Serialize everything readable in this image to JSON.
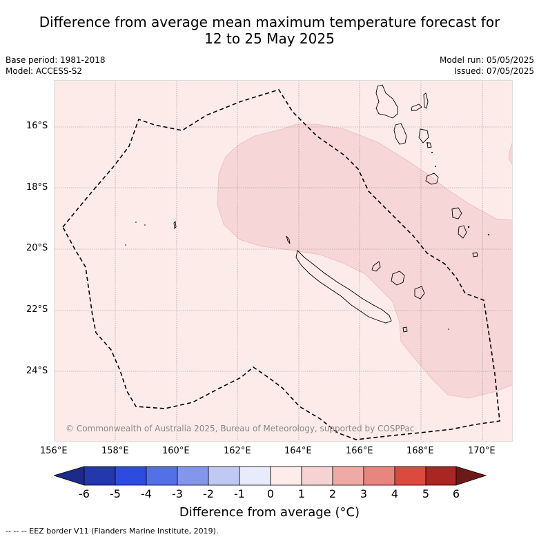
{
  "title_line1": "Difference from average mean maximum temperature forecast for",
  "title_line2": "12 to 25 May 2025",
  "meta_left": {
    "base_period": "Base period: 1981-2018",
    "model": "Model: ACCESS-S2"
  },
  "meta_right": {
    "model_run": "Model run: 05/05/2025",
    "issued": "Issued: 07/05/2025"
  },
  "lat_labels": [
    "16°S",
    "18°S",
    "20°S",
    "22°S",
    "24°S"
  ],
  "lon_labels": [
    "156°E",
    "158°E",
    "160°E",
    "162°E",
    "164°E",
    "166°E",
    "168°E",
    "170°E"
  ],
  "copyright": "© Commonwealth of Australia 2025, Bureau of Meteorology, supported by COSPPac",
  "colorbar": {
    "ticks": [
      "-6",
      "-5",
      "-4",
      "-3",
      "-2",
      "-1",
      "0",
      "1",
      "2",
      "3",
      "4",
      "5",
      "6"
    ],
    "colors": [
      "#1c2a8c",
      "#2238ac",
      "#2e4bdf",
      "#5470e6",
      "#8496ec",
      "#c0c8f4",
      "#e8ebfb",
      "#fdecea",
      "#f7d2d2",
      "#f0aaa6",
      "#e8857e",
      "#db4a3e",
      "#aa2622",
      "#6b1a17"
    ],
    "label": "Difference from average (°C)"
  },
  "map": {
    "background_color": "#fcebe9",
    "shaded_color": "#f6d6d6"
  },
  "footer": "--  --  -- EEZ border V11 (Flanders Marine Institute, 2019)."
}
